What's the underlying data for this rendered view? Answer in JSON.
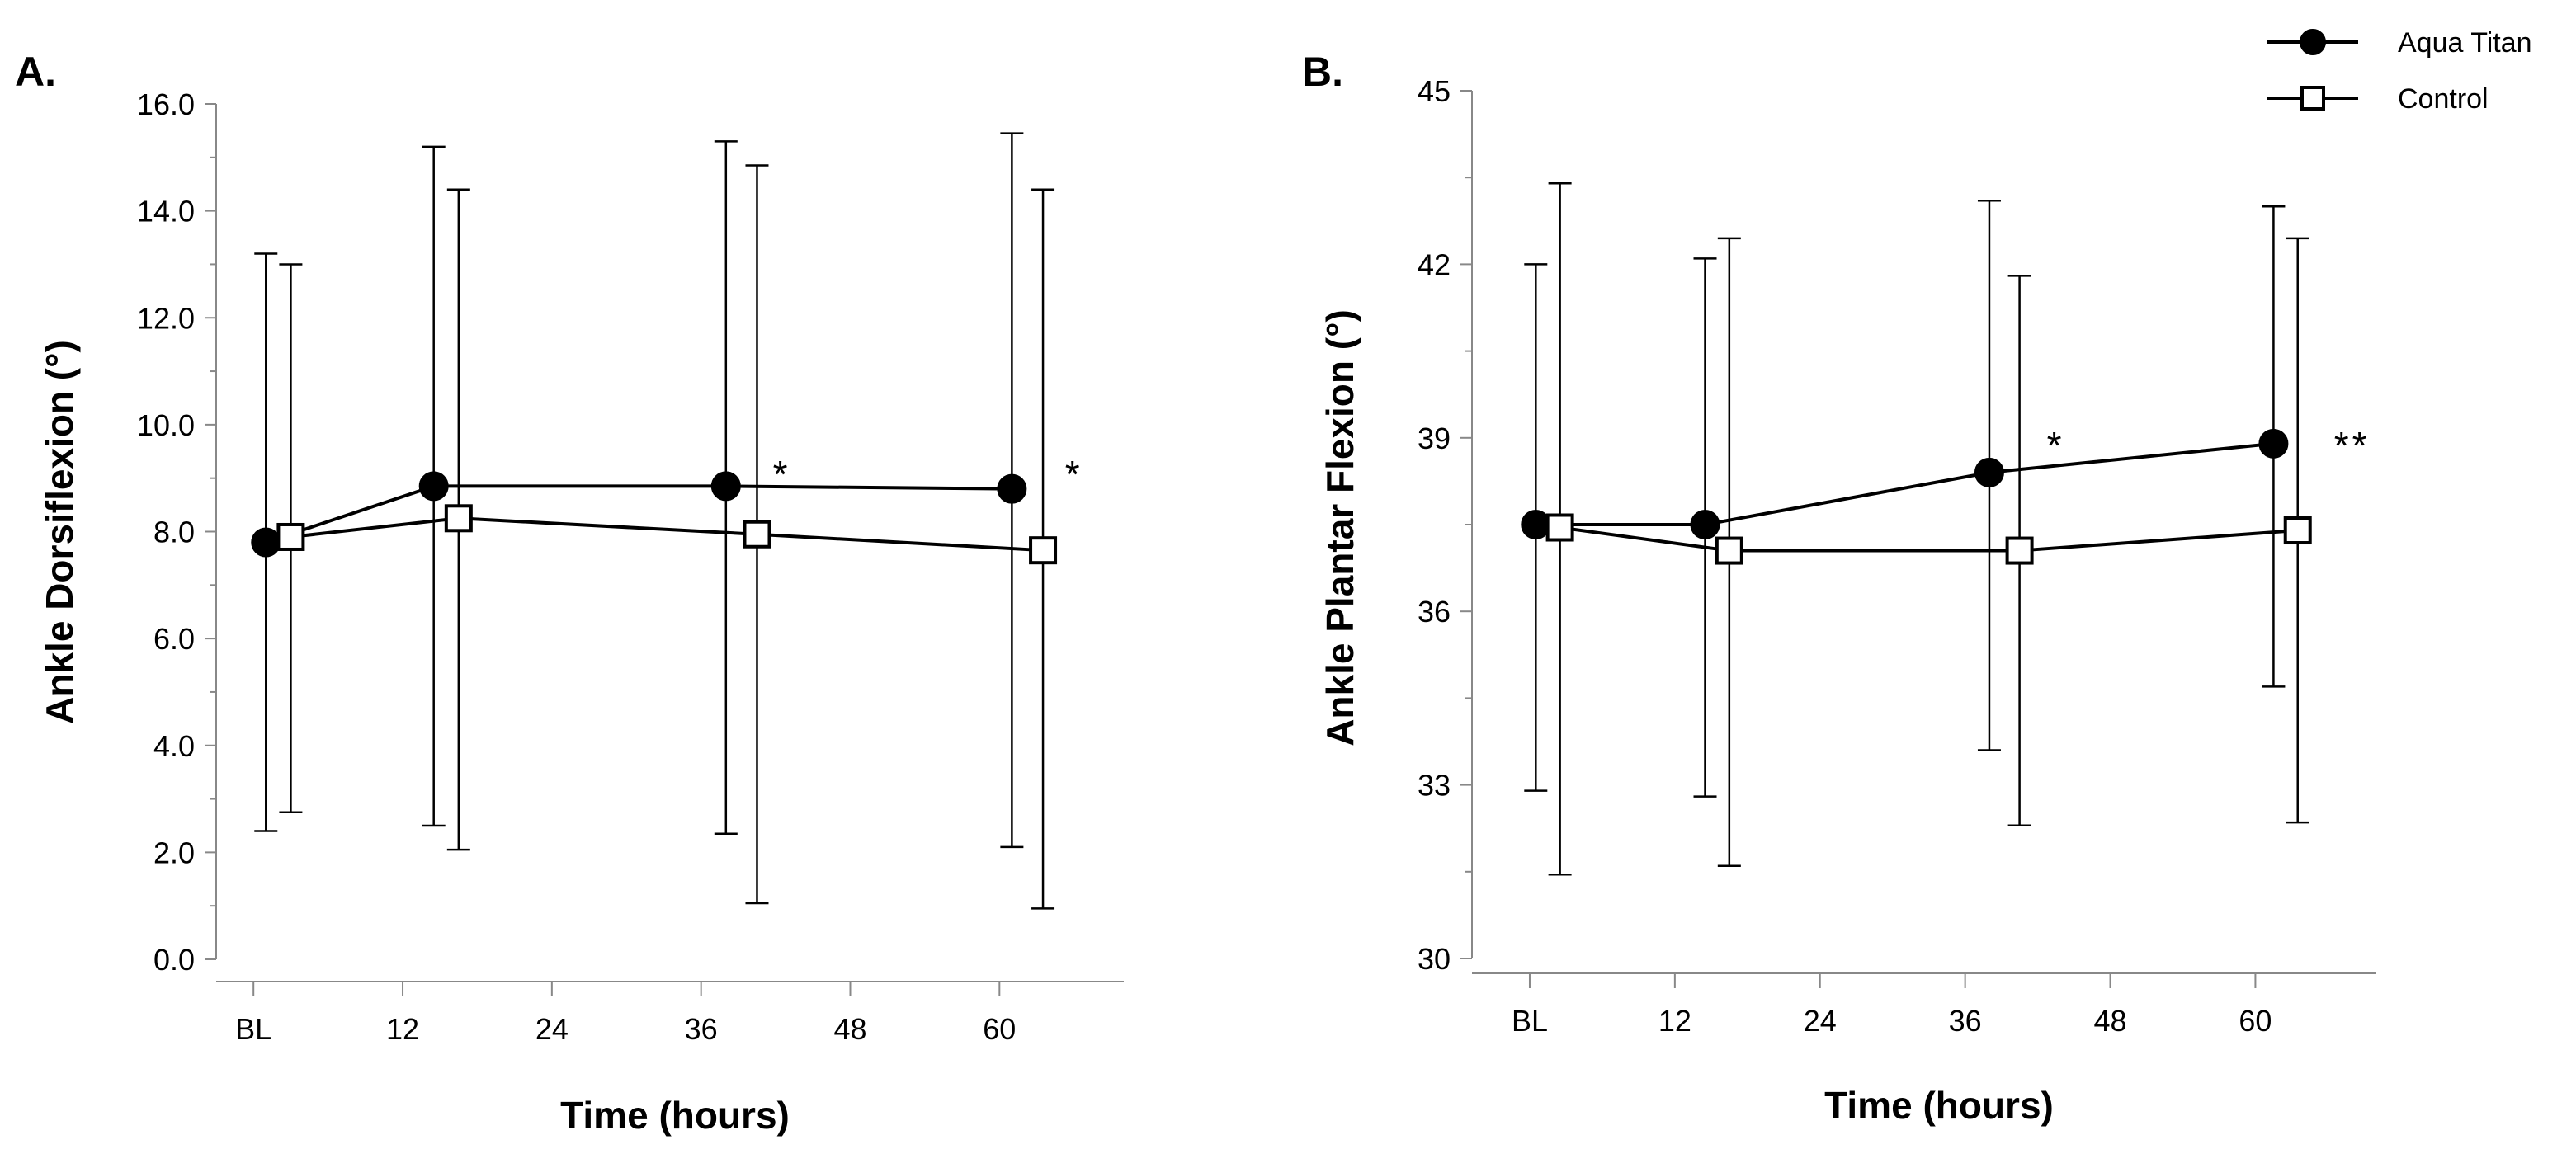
{
  "legend": {
    "position": "top-right",
    "entries": [
      {
        "name": "Aqua Titan",
        "marker": "filled-circle"
      },
      {
        "name": "Control",
        "marker": "open-square"
      }
    ]
  },
  "chart_data": [
    {
      "panel_label": "A.",
      "type": "line",
      "xlabel": "Time (hours)",
      "ylabel": "Ankle Dorsiflexion (°)",
      "ylim": [
        0,
        16
      ],
      "yticks": [
        "0.0",
        "2.0",
        "4.0",
        "6.0",
        "8.0",
        "10.0",
        "12.0",
        "14.0",
        "16.0"
      ],
      "xlim": [
        -3,
        70
      ],
      "xticks": [
        {
          "x": 0,
          "label": "BL"
        },
        {
          "x": 12,
          "label": "12"
        },
        {
          "x": 24,
          "label": "24"
        },
        {
          "x": 36,
          "label": "36"
        },
        {
          "x": 48,
          "label": "48"
        },
        {
          "x": 60,
          "label": "60"
        }
      ],
      "grid": false,
      "series": [
        {
          "name": "Aqua Titan",
          "marker": "filled-circle",
          "x": [
            1,
            14.5,
            38,
            61
          ],
          "values": [
            7.8,
            8.85,
            8.85,
            8.8
          ],
          "err_low": [
            2.4,
            2.5,
            2.35,
            2.1
          ],
          "err_high": [
            13.2,
            15.2,
            15.3,
            15.45
          ]
        },
        {
          "name": "Control",
          "marker": "open-square",
          "x": [
            3,
            16.5,
            40.5,
            63.5
          ],
          "values": [
            7.9,
            8.25,
            7.95,
            7.65
          ],
          "err_low": [
            2.75,
            2.05,
            1.05,
            0.95
          ],
          "err_high": [
            13.0,
            14.4,
            14.85,
            14.4
          ]
        }
      ],
      "annotations": [
        {
          "text": "*",
          "x": 42.5,
          "y": 9.1
        },
        {
          "text": "*",
          "x": 66,
          "y": 9.1
        }
      ]
    },
    {
      "panel_label": "B.",
      "type": "line",
      "xlabel": "Time (hours)",
      "ylabel": "Ankle Plantar Flexion (°)",
      "ylim": [
        30,
        45
      ],
      "yticks": [
        "30",
        "33",
        "36",
        "39",
        "42",
        "45"
      ],
      "xlim": [
        -3,
        70
      ],
      "xticks": [
        {
          "x": 0,
          "label": "BL"
        },
        {
          "x": 12,
          "label": "12"
        },
        {
          "x": 24,
          "label": "24"
        },
        {
          "x": 36,
          "label": "36"
        },
        {
          "x": 48,
          "label": "48"
        },
        {
          "x": 60,
          "label": "60"
        }
      ],
      "grid": false,
      "series": [
        {
          "name": "Aqua Titan",
          "marker": "filled-circle",
          "x": [
            0.5,
            14.5,
            38,
            61.5
          ],
          "values": [
            37.5,
            37.5,
            38.4,
            38.9
          ],
          "err_low": [
            32.9,
            32.8,
            33.6,
            34.7
          ],
          "err_high": [
            42.0,
            42.1,
            43.1,
            43.0
          ]
        },
        {
          "name": "Control",
          "marker": "open-square",
          "x": [
            2.5,
            16.5,
            40.5,
            63.5
          ],
          "values": [
            37.45,
            37.05,
            37.05,
            37.4
          ],
          "err_low": [
            31.45,
            31.6,
            32.3,
            32.35
          ],
          "err_high": [
            43.4,
            42.45,
            41.8,
            42.45
          ]
        }
      ],
      "annotations": [
        {
          "text": "*",
          "x": 43.5,
          "y": 38.9
        },
        {
          "text": "**",
          "x": 68,
          "y": 38.9
        }
      ]
    }
  ]
}
